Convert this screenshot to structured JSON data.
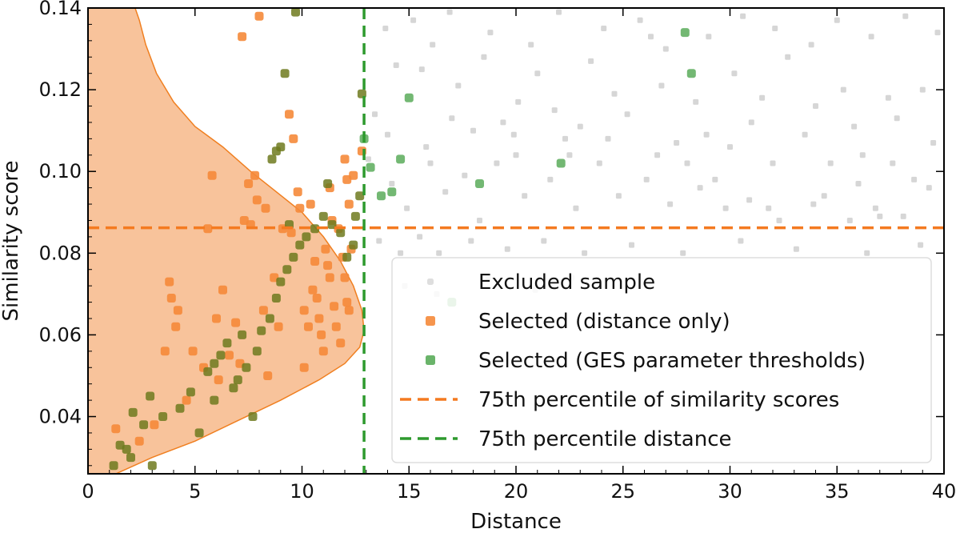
{
  "chart_data": {
    "type": "scatter",
    "xlabel": "Distance",
    "ylabel": "Similarity score",
    "xlim": [
      0,
      40
    ],
    "ylim": [
      0.026,
      0.14
    ],
    "xticks": [
      0,
      5,
      10,
      15,
      20,
      25,
      30,
      35,
      40
    ],
    "xtick_labels": [
      "0",
      "5",
      "10",
      "15",
      "20",
      "25",
      "30",
      "35",
      "40"
    ],
    "yticks": [
      0.04,
      0.06,
      0.08,
      0.1,
      0.12,
      0.14
    ],
    "ytick_labels": [
      "0.04",
      "0.06",
      "0.08",
      "0.10",
      "0.12",
      "0.14"
    ],
    "grid": false,
    "legend": {
      "placement": "lower-right",
      "entries": [
        {
          "label": "Excluded sample",
          "kind": "marker",
          "color": "#c8c8c8"
        },
        {
          "label": "Selected (distance only)",
          "kind": "marker",
          "color": "#f58a3a"
        },
        {
          "label": "Selected (GES parameter thresholds)",
          "kind": "marker",
          "color": "#5aac5a"
        },
        {
          "label": "75th percentile of similarity scores",
          "kind": "dashed-line",
          "color": "#f47a20"
        },
        {
          "label": "75th percentile distance",
          "kind": "dashed-line",
          "color": "#2e9a2e"
        }
      ]
    },
    "reference_lines": {
      "similarity_75th_percentile": 0.0862,
      "distance_75th_percentile": 12.9
    },
    "density_curve": {
      "color": "#f7b98a",
      "edge_color": "#f07f20",
      "points": [
        [
          1.3,
          0.026
        ],
        [
          3.0,
          0.03
        ],
        [
          5.0,
          0.034
        ],
        [
          7.0,
          0.039
        ],
        [
          9.0,
          0.044
        ],
        [
          10.8,
          0.049
        ],
        [
          12.0,
          0.053
        ],
        [
          12.7,
          0.057
        ],
        [
          12.9,
          0.061
        ],
        [
          12.8,
          0.066
        ],
        [
          12.4,
          0.072
        ],
        [
          11.8,
          0.078
        ],
        [
          11.0,
          0.084
        ],
        [
          10.0,
          0.09
        ],
        [
          8.8,
          0.095
        ],
        [
          7.6,
          0.1
        ],
        [
          6.3,
          0.106
        ],
        [
          5.0,
          0.111
        ],
        [
          4.0,
          0.117
        ],
        [
          3.2,
          0.124
        ],
        [
          2.7,
          0.131
        ],
        [
          2.4,
          0.137
        ],
        [
          2.2,
          0.14
        ],
        [
          0,
          0.14
        ],
        [
          0,
          0.026
        ]
      ]
    },
    "series": [
      {
        "name": "Excluded sample",
        "color": "#c8c8c8",
        "points": [
          [
            15.2,
            0.137
          ],
          [
            16.1,
            0.131
          ],
          [
            17.3,
            0.121
          ],
          [
            18.5,
            0.128
          ],
          [
            19.4,
            0.112
          ],
          [
            20.1,
            0.117
          ],
          [
            21.0,
            0.124
          ],
          [
            22.3,
            0.108
          ],
          [
            23.5,
            0.127
          ],
          [
            24.6,
            0.119
          ],
          [
            25.2,
            0.114
          ],
          [
            26.3,
            0.133
          ],
          [
            27.5,
            0.107
          ],
          [
            28.4,
            0.117
          ],
          [
            29.3,
            0.098
          ],
          [
            30.2,
            0.124
          ],
          [
            31.0,
            0.112
          ],
          [
            31.8,
            0.091
          ],
          [
            32.7,
            0.128
          ],
          [
            33.5,
            0.109
          ],
          [
            34.4,
            0.094
          ],
          [
            35.3,
            0.12
          ],
          [
            36.2,
            0.104
          ],
          [
            37.0,
            0.089
          ],
          [
            37.8,
            0.113
          ],
          [
            38.6,
            0.098
          ],
          [
            39.5,
            0.107
          ],
          [
            39.7,
            0.134
          ],
          [
            14.2,
            0.097
          ],
          [
            14.9,
            0.091
          ],
          [
            15.8,
            0.106
          ],
          [
            16.7,
            0.095
          ],
          [
            17.6,
            0.099
          ],
          [
            18.3,
            0.088
          ],
          [
            19.1,
            0.102
          ],
          [
            20.4,
            0.094
          ],
          [
            21.6,
            0.098
          ],
          [
            22.8,
            0.091
          ],
          [
            23.9,
            0.102
          ],
          [
            24.8,
            0.094
          ],
          [
            26.1,
            0.098
          ],
          [
            27.2,
            0.092
          ],
          [
            28.6,
            0.096
          ],
          [
            29.8,
            0.091
          ],
          [
            30.9,
            0.093
          ],
          [
            32.3,
            0.088
          ],
          [
            33.9,
            0.092
          ],
          [
            35.6,
            0.088
          ],
          [
            36.8,
            0.091
          ],
          [
            38.1,
            0.089
          ],
          [
            13.6,
            0.083
          ],
          [
            14.6,
            0.08
          ],
          [
            15.5,
            0.084
          ],
          [
            16.4,
            0.08
          ],
          [
            17.9,
            0.083
          ],
          [
            19.6,
            0.081
          ],
          [
            21.3,
            0.083
          ],
          [
            23.2,
            0.08
          ],
          [
            25.4,
            0.082
          ],
          [
            27.8,
            0.08
          ],
          [
            30.5,
            0.083
          ],
          [
            33.1,
            0.081
          ],
          [
            36.4,
            0.08
          ],
          [
            38.9,
            0.082
          ],
          [
            13.9,
            0.135
          ],
          [
            14.4,
            0.126
          ],
          [
            16.9,
            0.139
          ],
          [
            18.8,
            0.134
          ],
          [
            20.7,
            0.131
          ],
          [
            22.0,
            0.139
          ],
          [
            24.1,
            0.135
          ],
          [
            25.8,
            0.137
          ],
          [
            27.0,
            0.13
          ],
          [
            29.0,
            0.133
          ],
          [
            30.6,
            0.138
          ],
          [
            32.1,
            0.135
          ],
          [
            33.8,
            0.131
          ],
          [
            35.0,
            0.137
          ],
          [
            36.6,
            0.133
          ],
          [
            38.2,
            0.138
          ],
          [
            13.4,
            0.114
          ],
          [
            15.6,
            0.125
          ],
          [
            17.0,
            0.113
          ],
          [
            19.9,
            0.109
          ],
          [
            21.8,
            0.115
          ],
          [
            23.0,
            0.111
          ],
          [
            26.8,
            0.121
          ],
          [
            28.9,
            0.109
          ],
          [
            31.5,
            0.118
          ],
          [
            34.0,
            0.116
          ],
          [
            35.8,
            0.111
          ],
          [
            37.4,
            0.118
          ],
          [
            39.0,
            0.12
          ],
          [
            13.1,
            0.103
          ],
          [
            14.0,
            0.109
          ],
          [
            16.0,
            0.102
          ],
          [
            18.0,
            0.11
          ],
          [
            20.0,
            0.104
          ],
          [
            22.5,
            0.104
          ],
          [
            24.3,
            0.108
          ],
          [
            26.6,
            0.104
          ],
          [
            28.0,
            0.102
          ],
          [
            30.0,
            0.106
          ],
          [
            32.0,
            0.102
          ],
          [
            34.7,
            0.102
          ],
          [
            36.0,
            0.097
          ],
          [
            37.6,
            0.102
          ],
          [
            39.3,
            0.096
          ],
          [
            14.8,
            0.072
          ],
          [
            16.3,
            0.07
          ],
          [
            18.7,
            0.074
          ],
          [
            20.9,
            0.071
          ],
          [
            22.6,
            0.074
          ]
        ]
      },
      {
        "name": "Selected (distance only)",
        "color": "#f58a3a",
        "points": [
          [
            1.3,
            0.037
          ],
          [
            2.4,
            0.034
          ],
          [
            3.1,
            0.038
          ],
          [
            3.6,
            0.056
          ],
          [
            3.8,
            0.073
          ],
          [
            3.9,
            0.069
          ],
          [
            4.2,
            0.066
          ],
          [
            4.1,
            0.062
          ],
          [
            4.6,
            0.044
          ],
          [
            4.9,
            0.056
          ],
          [
            5.4,
            0.052
          ],
          [
            5.8,
            0.099
          ],
          [
            6.0,
            0.064
          ],
          [
            6.1,
            0.049
          ],
          [
            6.3,
            0.071
          ],
          [
            6.6,
            0.055
          ],
          [
            6.9,
            0.063
          ],
          [
            7.1,
            0.053
          ],
          [
            7.3,
            0.088
          ],
          [
            7.6,
            0.087
          ],
          [
            7.9,
            0.093
          ],
          [
            7.5,
            0.097
          ],
          [
            7.8,
            0.099
          ],
          [
            8.3,
            0.091
          ],
          [
            8.7,
            0.074
          ],
          [
            8.2,
            0.066
          ],
          [
            8.9,
            0.062
          ],
          [
            9.1,
            0.086
          ],
          [
            9.5,
            0.085
          ],
          [
            9.4,
            0.114
          ],
          [
            9.6,
            0.108
          ],
          [
            9.8,
            0.095
          ],
          [
            9.9,
            0.091
          ],
          [
            10.1,
            0.066
          ],
          [
            10.3,
            0.062
          ],
          [
            10.5,
            0.071
          ],
          [
            10.6,
            0.078
          ],
          [
            10.7,
            0.069
          ],
          [
            10.8,
            0.064
          ],
          [
            10.9,
            0.06
          ],
          [
            11.0,
            0.056
          ],
          [
            11.1,
            0.081
          ],
          [
            11.2,
            0.077
          ],
          [
            11.3,
            0.074
          ],
          [
            11.5,
            0.067
          ],
          [
            11.6,
            0.062
          ],
          [
            11.8,
            0.058
          ],
          [
            11.9,
            0.079
          ],
          [
            12.0,
            0.074
          ],
          [
            12.1,
            0.068
          ],
          [
            12.2,
            0.066
          ],
          [
            12.3,
            0.081
          ],
          [
            11.4,
            0.088
          ],
          [
            11.7,
            0.086
          ],
          [
            12.2,
            0.092
          ],
          [
            12.0,
            0.103
          ],
          [
            12.4,
            0.099
          ],
          [
            12.8,
            0.105
          ],
          [
            10.1,
            0.052
          ],
          [
            8.4,
            0.05
          ],
          [
            7.2,
            0.133
          ],
          [
            8.0,
            0.138
          ],
          [
            5.6,
            0.086
          ],
          [
            10.4,
            0.092
          ],
          [
            11.3,
            0.096
          ],
          [
            12.1,
            0.098
          ]
        ]
      },
      {
        "name": "Selected (GES parameter thresholds)",
        "color": "#5aac5a",
        "points": [
          [
            1.2,
            0.028
          ],
          [
            1.8,
            0.032
          ],
          [
            2.1,
            0.041
          ],
          [
            2.6,
            0.038
          ],
          [
            2.9,
            0.045
          ],
          [
            3.0,
            0.028
          ],
          [
            3.5,
            0.04
          ],
          [
            4.3,
            0.042
          ],
          [
            4.8,
            0.046
          ],
          [
            5.2,
            0.036
          ],
          [
            5.6,
            0.051
          ],
          [
            5.9,
            0.053
          ],
          [
            6.2,
            0.055
          ],
          [
            6.5,
            0.058
          ],
          [
            6.8,
            0.047
          ],
          [
            7.2,
            0.06
          ],
          [
            7.4,
            0.052
          ],
          [
            7.7,
            0.04
          ],
          [
            7.9,
            0.056
          ],
          [
            8.1,
            0.061
          ],
          [
            8.5,
            0.064
          ],
          [
            8.8,
            0.069
          ],
          [
            9.0,
            0.073
          ],
          [
            9.3,
            0.076
          ],
          [
            9.6,
            0.079
          ],
          [
            9.9,
            0.082
          ],
          [
            10.2,
            0.084
          ],
          [
            10.6,
            0.086
          ],
          [
            11.0,
            0.089
          ],
          [
            11.4,
            0.087
          ],
          [
            11.8,
            0.085
          ],
          [
            12.1,
            0.079
          ],
          [
            12.4,
            0.082
          ],
          [
            12.5,
            0.089
          ],
          [
            12.7,
            0.094
          ],
          [
            12.9,
            0.108
          ],
          [
            12.8,
            0.119
          ],
          [
            11.2,
            0.097
          ],
          [
            9.2,
            0.124
          ],
          [
            9.7,
            0.139
          ],
          [
            8.8,
            0.105
          ],
          [
            9.0,
            0.106
          ],
          [
            8.6,
            0.103
          ],
          [
            13.2,
            0.101
          ],
          [
            13.7,
            0.094
          ],
          [
            14.2,
            0.095
          ],
          [
            14.6,
            0.103
          ],
          [
            15.0,
            0.118
          ],
          [
            18.3,
            0.097
          ],
          [
            22.1,
            0.102
          ],
          [
            27.9,
            0.134
          ],
          [
            28.2,
            0.124
          ],
          [
            17.0,
            0.068
          ],
          [
            9.4,
            0.087
          ],
          [
            7.0,
            0.049
          ],
          [
            5.9,
            0.044
          ],
          [
            2.0,
            0.03
          ],
          [
            1.5,
            0.033
          ]
        ]
      }
    ]
  }
}
